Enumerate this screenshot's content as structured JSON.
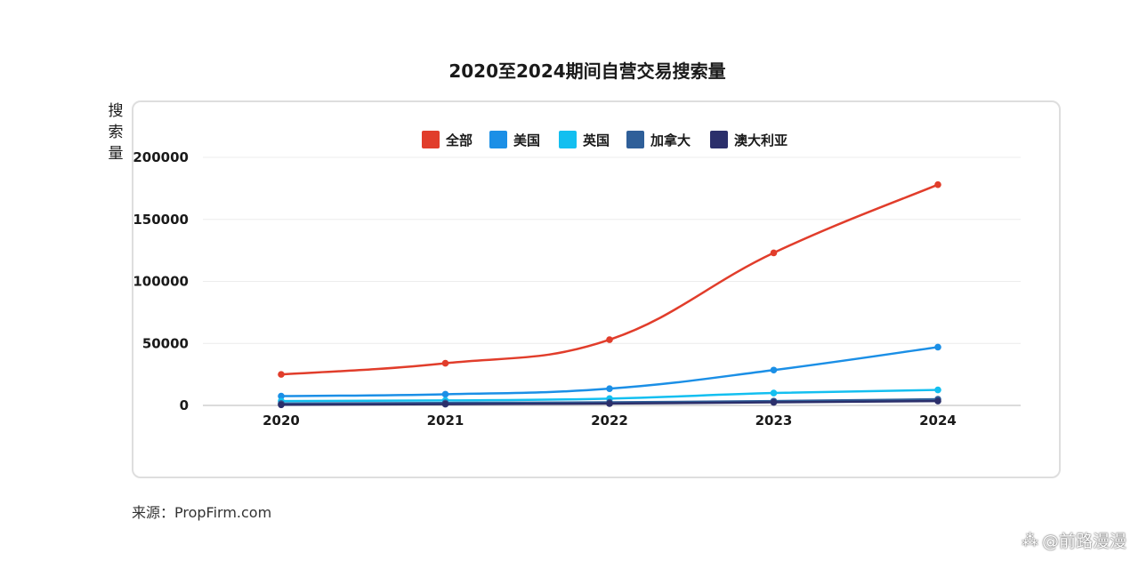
{
  "chart_data": {
    "type": "line",
    "title": "2020至2024期间自营交易搜索量",
    "xlabel": "",
    "ylabel": "搜索量",
    "ylim": [
      0,
      200000
    ],
    "yticks": [
      "0",
      "50000",
      "100000",
      "150000",
      "200000"
    ],
    "categories": [
      "2020",
      "2021",
      "2022",
      "2023",
      "2024"
    ],
    "legend_position": "top-center",
    "grid": true,
    "series": [
      {
        "name": "全部",
        "color": "#e13d2b",
        "values": [
          25000,
          34000,
          53000,
          123000,
          178000
        ]
      },
      {
        "name": "美国",
        "color": "#1b8fe6",
        "values": [
          7500,
          9000,
          13500,
          28500,
          47000
        ]
      },
      {
        "name": "英国",
        "color": "#13bff0",
        "values": [
          3500,
          4000,
          5500,
          10000,
          12500
        ]
      },
      {
        "name": "加拿大",
        "color": "#2f5f99",
        "values": [
          1500,
          2000,
          2500,
          3500,
          5000
        ]
      },
      {
        "name": "澳大利亚",
        "color": "#2b2f6b",
        "values": [
          500,
          1000,
          1500,
          2500,
          3500
        ]
      }
    ]
  },
  "source_note": "来源：PropFirm.com",
  "watermark": {
    "text": "@前路漫漫",
    "icon": "zhihu-logo-icon"
  }
}
